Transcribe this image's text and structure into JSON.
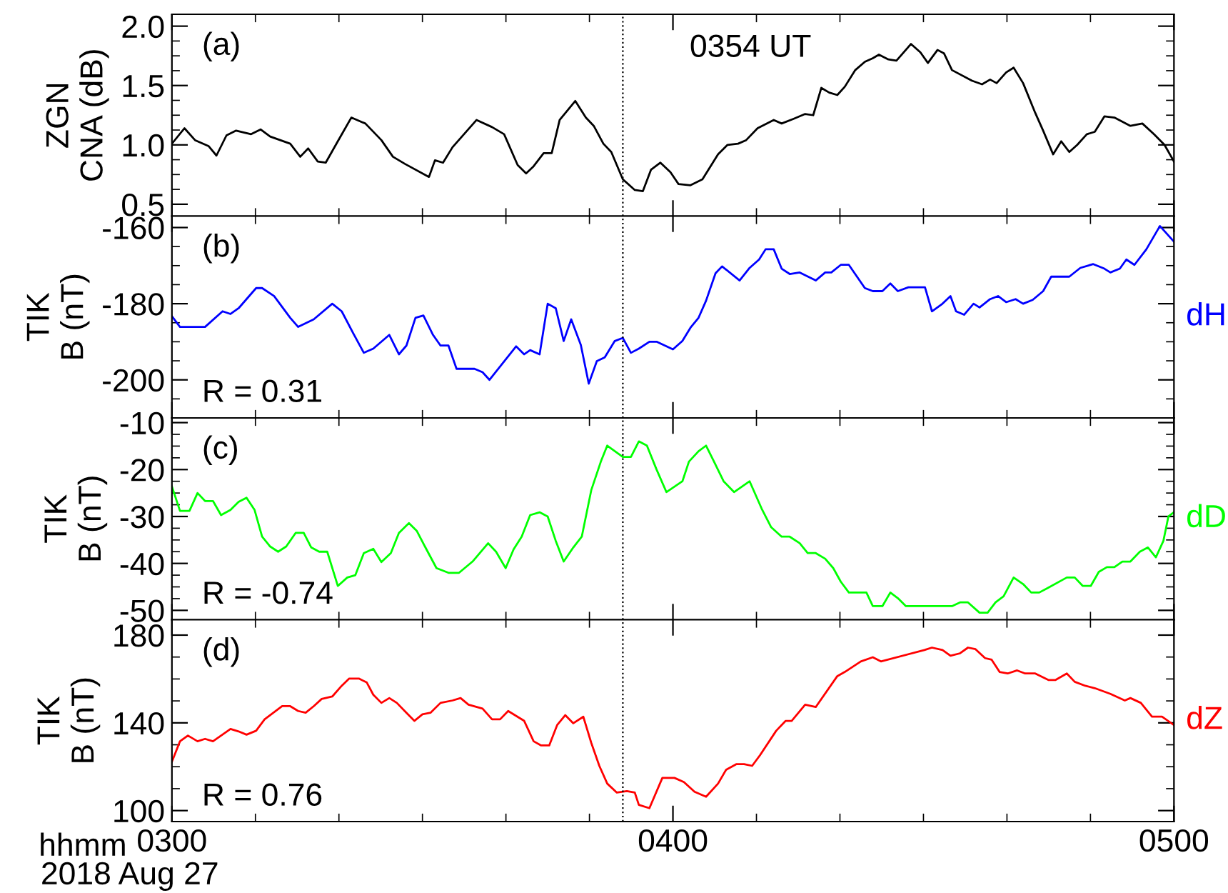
{
  "chart_data": [
    {
      "type": "line",
      "ylabel": "ZGN\nCNA (dB)",
      "annotations": [
        "(a)"
      ],
      "xlim": [
        "2018-08-27T03:00",
        "2018-08-27T05:00"
      ],
      "xticks": [
        {
          "value": "2018-08-27T03:00",
          "label": null
        },
        {
          "value": "2018-08-27T04:00",
          "label": null
        },
        {
          "value": "2018-08-27T05:00",
          "label": null
        }
      ],
      "ylim": [
        0.4,
        2.1
      ],
      "yticks": [
        0.5,
        {
          "value": 1,
          "label": "1.0"
        },
        1.5,
        {
          "value": 2,
          "label": "2.0"
        }
      ],
      "tick_labels": "y",
      "grid": false,
      "ref_lines": [
        {
          "axis": "x",
          "value": "2018-08-27T03:54",
          "label": "0354 UT",
          "line_style": "dotted",
          "color": "#000000"
        }
      ],
      "series": [
        {
          "color": "#000000",
          "x": [
            "2018-08-27T03:00:00",
            "2018-08-27T03:01:30",
            "2018-08-27T03:02:46",
            "2018-08-27T03:04:23",
            "2018-08-27T03:05:20",
            "2018-08-27T03:06:32",
            "2018-08-27T03:07:41",
            "2018-08-27T03:09:29",
            "2018-08-27T03:10:37",
            "2018-08-27T03:11:46",
            "2018-08-27T03:14:10",
            "2018-08-27T03:15:22",
            "2018-08-27T03:16:19",
            "2018-08-27T03:17:28",
            "2018-08-27T03:18:25",
            "2018-08-27T03:19:52",
            "2018-08-27T03:21:29",
            "2018-08-27T03:23:10",
            "2018-08-27T03:25:05",
            "2018-08-27T03:26:28",
            "2018-08-27T03:27:54",
            "2018-08-27T03:30:47",
            "2018-08-27T03:31:30",
            "2018-08-27T03:32:28",
            "2018-08-27T03:33:36",
            "2018-08-27T03:36:29",
            "2018-08-27T03:38:20",
            "2018-08-27T03:39:47",
            "2018-08-27T03:41:24",
            "2018-08-27T03:42:25",
            "2018-08-27T03:43:19",
            "2018-08-27T03:44:31",
            "2018-08-27T03:45:29",
            "2018-08-27T03:46:26",
            "2018-08-27T03:48:18",
            "2018-08-27T03:49:34",
            "2018-08-27T03:50:31",
            "2018-08-27T03:51:40",
            "2018-08-27T03:52:37",
            "2018-08-27T03:54:00",
            "2018-08-27T03:55:26",
            "2018-08-27T03:56:24",
            "2018-08-27T03:57:22",
            "2018-08-27T03:58:30",
            "2018-08-27T03:59:42",
            "2018-08-27T04:00:40",
            "2018-08-27T04:02:06",
            "2018-08-27T04:03:32",
            "2018-08-27T04:05:24",
            "2018-08-27T04:06:32",
            "2018-08-27T04:07:48",
            "2018-08-27T04:08:46",
            "2018-08-27T04:10:08",
            "2018-08-27T04:12:04",
            "2018-08-27T04:13:01",
            "2018-08-27T04:14:28",
            "2018-08-27T04:15:50",
            "2018-08-27T04:16:48",
            "2018-08-27T04:17:46",
            "2018-08-27T04:18:43",
            "2018-08-27T04:19:41",
            "2018-08-27T04:20:35",
            "2018-08-27T04:21:50",
            "2018-08-27T04:22:59",
            "2018-08-27T04:23:56",
            "2018-08-27T04:24:40",
            "2018-08-27T04:25:48",
            "2018-08-27T04:26:46",
            "2018-08-27T04:28:30",
            "2018-08-27T04:29:38",
            "2018-08-27T04:30:32",
            "2018-08-27T04:31:41",
            "2018-08-27T04:32:28",
            "2018-08-27T04:33:25",
            "2018-08-27T04:35:49",
            "2018-08-27T04:37:01",
            "2018-08-27T04:37:59",
            "2018-08-27T04:38:46",
            "2018-08-27T04:39:54",
            "2018-08-27T04:40:48",
            "2018-08-27T04:41:56",
            "2018-08-27T04:43:23",
            "2018-08-27T04:44:20",
            "2018-08-27T04:45:32",
            "2018-08-27T04:46:30",
            "2018-08-27T04:47:28",
            "2018-08-27T04:48:25",
            "2018-08-27T04:49:34",
            "2018-08-27T04:50:31",
            "2018-08-27T04:51:40",
            "2018-08-27T04:52:52",
            "2018-08-27T04:54:47",
            "2018-08-27T04:56:13",
            "2018-08-27T04:57:36",
            "2018-08-27T04:58:52",
            "2018-08-27T05:00:00"
          ],
          "values": [
            1.01,
            1.14,
            1.04,
            0.99,
            0.91,
            1.08,
            1.12,
            1.09,
            1.13,
            1.07,
            1.01,
            0.9,
            0.97,
            0.86,
            0.85,
            1.03,
            1.23,
            1.18,
            1.04,
            0.9,
            0.84,
            0.73,
            0.87,
            0.85,
            0.98,
            1.21,
            1.15,
            1.09,
            0.83,
            0.76,
            0.82,
            0.93,
            0.93,
            1.21,
            1.37,
            1.23,
            1.16,
            1.01,
            0.94,
            0.71,
            0.62,
            0.61,
            0.79,
            0.85,
            0.77,
            0.67,
            0.66,
            0.71,
            0.92,
            1.0,
            1.01,
            1.04,
            1.14,
            1.21,
            1.18,
            1.22,
            1.26,
            1.25,
            1.48,
            1.44,
            1.42,
            1.49,
            1.63,
            1.7,
            1.73,
            1.76,
            1.72,
            1.71,
            1.85,
            1.78,
            1.69,
            1.8,
            1.77,
            1.63,
            1.54,
            1.51,
            1.55,
            1.52,
            1.61,
            1.65,
            1.52,
            1.27,
            1.12,
            0.92,
            1.03,
            0.94,
            1.0,
            1.09,
            1.11,
            1.24,
            1.23,
            1.16,
            1.18,
            1.09,
            1.0,
            0.86
          ]
        }
      ]
    },
    {
      "type": "line",
      "ylabel": "TIK\nB (nT)",
      "annotations": [
        "(b)",
        "R = 0.31"
      ],
      "xlim": [
        "2018-08-27T03:00",
        "2018-08-27T05:00"
      ],
      "xticks": [
        {
          "value": "2018-08-27T03:00",
          "label": null
        },
        {
          "value": "2018-08-27T04:00",
          "label": null
        },
        {
          "value": "2018-08-27T05:00",
          "label": null
        }
      ],
      "ylim": [
        -210,
        -157
      ],
      "yticks": [
        -200,
        -180,
        -160
      ],
      "tick_labels": "y",
      "grid": false,
      "ref_lines": [
        {
          "axis": "x",
          "value": "2018-08-27T03:54",
          "line_style": "dotted",
          "color": "#000000"
        }
      ],
      "series": [
        {
          "name": "dH",
          "color": "#0000ff",
          "x": [
            "2018-08-27T03:00:00",
            "2018-08-27T03:00:58",
            "2018-08-27T03:03:58",
            "2018-08-27T03:06:04",
            "2018-08-27T03:07:01",
            "2018-08-27T03:07:59",
            "2018-08-27T03:10:05",
            "2018-08-27T03:10:48",
            "2018-08-27T03:12:14",
            "2018-08-27T03:14:10",
            "2018-08-27T03:15:07",
            "2018-08-27T03:16:59",
            "2018-08-27T03:19:12",
            "2018-08-27T03:20:20",
            "2018-08-27T03:21:43",
            "2018-08-27T03:22:59",
            "2018-08-27T03:24:07",
            "2018-08-27T03:26:02",
            "2018-08-27T03:27:11",
            "2018-08-27T03:28:05",
            "2018-08-27T03:29:10",
            "2018-08-27T03:30:07",
            "2018-08-27T03:31:16",
            "2018-08-27T03:32:10",
            "2018-08-27T03:33:07",
            "2018-08-27T03:34:05",
            "2018-08-27T03:36:14",
            "2018-08-27T03:37:12",
            "2018-08-27T03:38:02",
            "2018-08-27T03:41:13",
            "2018-08-27T03:42:11",
            "2018-08-27T03:42:54",
            "2018-08-27T03:44:02",
            "2018-08-27T03:45:00",
            "2018-08-27T03:45:58",
            "2018-08-27T03:46:55",
            "2018-08-27T03:47:49",
            "2018-08-27T03:48:58",
            "2018-08-27T03:49:55",
            "2018-08-27T03:50:53",
            "2018-08-27T03:51:50",
            "2018-08-27T03:53:02",
            "2018-08-27T03:54:00",
            "2018-08-27T03:54:58",
            "2018-08-27T03:55:55",
            "2018-08-27T03:57:11",
            "2018-08-27T03:58:05",
            "2018-08-27T04:00:00",
            "2018-08-27T04:01:08",
            "2018-08-27T04:02:06",
            "2018-08-27T04:03:04",
            "2018-08-27T04:03:58",
            "2018-08-27T04:05:06",
            "2018-08-27T04:05:53",
            "2018-08-27T04:07:59",
            "2018-08-27T04:09:11",
            "2018-08-27T04:10:19",
            "2018-08-27T04:11:06",
            "2018-08-27T04:12:04",
            "2018-08-27T04:13:01",
            "2018-08-27T04:13:59",
            "2018-08-27T04:15:11",
            "2018-08-27T04:17:06",
            "2018-08-27T04:18:14",
            "2018-08-27T04:18:58",
            "2018-08-27T04:20:06",
            "2018-08-27T04:21:04",
            "2018-08-27T04:22:59",
            "2018-08-27T04:23:56",
            "2018-08-27T04:25:05",
            "2018-08-27T04:26:02",
            "2018-08-27T04:26:56",
            "2018-08-27T04:28:12",
            "2018-08-27T04:30:11",
            "2018-08-27T04:31:01",
            "2018-08-27T04:32:17",
            "2018-08-27T04:33:14",
            "2018-08-27T04:33:54",
            "2018-08-27T04:34:52",
            "2018-08-27T04:36:00",
            "2018-08-27T04:36:43",
            "2018-08-27T04:37:59",
            "2018-08-27T04:38:56",
            "2018-08-27T04:39:54",
            "2018-08-27T04:41:02",
            "2018-08-27T04:41:56",
            "2018-08-27T04:43:05",
            "2018-08-27T04:44:20",
            "2018-08-27T04:45:18",
            "2018-08-27T04:47:28",
            "2018-08-27T04:48:47",
            "2018-08-27T04:50:20",
            "2018-08-27T04:51:40",
            "2018-08-27T04:52:23",
            "2018-08-27T04:53:31",
            "2018-08-27T04:54:18",
            "2018-08-27T04:55:16",
            "2018-08-27T04:56:42",
            "2018-08-27T04:58:19",
            "2018-08-27T05:00:00"
          ],
          "values": [
            -183.3,
            -186.1,
            -186.1,
            -182.0,
            -182.7,
            -181.2,
            -175.9,
            -175.9,
            -178,
            -183.7,
            -186.1,
            -184.1,
            -180,
            -182,
            -187.8,
            -192.9,
            -191.8,
            -188.2,
            -193.3,
            -191,
            -183.7,
            -183.1,
            -188.2,
            -191,
            -191,
            -197.1,
            -197.1,
            -198,
            -200,
            -191.2,
            -193.3,
            -192.2,
            -193.3,
            -180,
            -181.2,
            -189.8,
            -184.1,
            -190.8,
            -201,
            -195.1,
            -194.1,
            -189.8,
            -189,
            -192.9,
            -191.8,
            -190,
            -190,
            -192,
            -189.8,
            -186.3,
            -183.7,
            -179.2,
            -172,
            -170.2,
            -173.9,
            -170.6,
            -168.4,
            -165.7,
            -165.7,
            -170.8,
            -172.2,
            -171.8,
            -173.9,
            -171.8,
            -171.8,
            -169.8,
            -169.8,
            -175.9,
            -176.7,
            -176.7,
            -174.7,
            -176.7,
            -175.7,
            -175.7,
            -182,
            -180,
            -178,
            -182,
            -182.9,
            -180,
            -181,
            -178.8,
            -178,
            -179.6,
            -178.8,
            -180,
            -179,
            -176.7,
            -172.9,
            -172.9,
            -170.6,
            -169.6,
            -170.8,
            -171.8,
            -170.8,
            -168.4,
            -169.8,
            -165.7,
            -159.6,
            -163.7
          ]
        }
      ]
    },
    {
      "type": "line",
      "ylabel": "TIK\nB (nT)",
      "annotations": [
        "(c)",
        "R = -0.74"
      ],
      "xlim": [
        "2018-08-27T03:00",
        "2018-08-27T05:00"
      ],
      "xticks": [
        {
          "value": "2018-08-27T03:00",
          "label": null
        },
        {
          "value": "2018-08-27T04:00",
          "label": null
        },
        {
          "value": "2018-08-27T05:00",
          "label": null
        }
      ],
      "ylim": [
        -52,
        -9
      ],
      "yticks": [
        -50,
        -40,
        -30,
        -20,
        -10
      ],
      "tick_labels": "y",
      "grid": false,
      "ref_lines": [
        {
          "axis": "x",
          "value": "2018-08-27T03:54",
          "line_style": "dotted",
          "color": "#000000"
        }
      ],
      "series": [
        {
          "name": "dD",
          "color": "#00ff00",
          "x": [
            "2018-08-27T03:00:00",
            "2018-08-27T03:00:58",
            "2018-08-27T03:02:06",
            "2018-08-27T03:03:04",
            "2018-08-27T03:03:58",
            "2018-08-27T03:04:55",
            "2018-08-27T03:05:53",
            "2018-08-27T03:07:01",
            "2018-08-27T03:07:59",
            "2018-08-27T03:08:56",
            "2018-08-27T03:09:54",
            "2018-08-27T03:10:48",
            "2018-08-27T03:11:46",
            "2018-08-27T03:12:43",
            "2018-08-27T03:13:41",
            "2018-08-27T03:14:49",
            "2018-08-27T03:15:47",
            "2018-08-27T03:16:41",
            "2018-08-27T03:17:38",
            "2018-08-27T03:18:36",
            "2018-08-27T03:19:52",
            "2018-08-27T03:21:00",
            "2018-08-27T03:21:58",
            "2018-08-27T03:22:59",
            "2018-08-27T03:24:07",
            "2018-08-27T03:25:05",
            "2018-08-27T03:26:13",
            "2018-08-27T03:27:11",
            "2018-08-27T03:28:23",
            "2018-08-27T03:29:20",
            "2018-08-27T03:30:18",
            "2018-08-27T03:31:41",
            "2018-08-27T03:33:07",
            "2018-08-27T03:34:23",
            "2018-08-27T03:36:00",
            "2018-08-27T03:37:52",
            "2018-08-27T03:38:49",
            "2018-08-27T03:39:58",
            "2018-08-27T03:40:55",
            "2018-08-27T03:41:53",
            "2018-08-27T03:42:54",
            "2018-08-27T03:44:02",
            "2018-08-27T03:45:00",
            "2018-08-27T03:45:58",
            "2018-08-27T03:46:55",
            "2018-08-27T03:48:04",
            "2018-08-27T03:49:05",
            "2018-08-27T03:50:13",
            "2018-08-27T03:51:22",
            "2018-08-27T03:52:08",
            "2018-08-27T03:54:00",
            "2018-08-27T03:54:58",
            "2018-08-27T03:55:55",
            "2018-08-27T03:56:53",
            "2018-08-27T03:58:01",
            "2018-08-27T03:59:13",
            "2018-08-27T04:01:08",
            "2018-08-27T04:01:55",
            "2018-08-27T04:03:04",
            "2018-08-27T04:03:58",
            "2018-08-27T04:04:55",
            "2018-08-27T04:06:04",
            "2018-08-27T04:07:19",
            "2018-08-27T04:09:11",
            "2018-08-27T04:10:37",
            "2018-08-27T04:11:46",
            "2018-08-27T04:13:01",
            "2018-08-27T04:13:59",
            "2018-08-27T04:15:11",
            "2018-08-27T04:16:08",
            "2018-08-27T04:17:06",
            "2018-08-27T04:18:14",
            "2018-08-27T04:19:12",
            "2018-08-27T04:20:06",
            "2018-08-27T04:21:04",
            "2018-08-27T04:22:12",
            "2018-08-27T04:23:10",
            "2018-08-27T04:23:56",
            "2018-08-27T04:25:05",
            "2018-08-27T04:26:02",
            "2018-08-27T04:26:56",
            "2018-08-27T04:27:54",
            "2018-08-27T04:33:25",
            "2018-08-27T04:34:23",
            "2018-08-27T04:35:20",
            "2018-08-27T04:36:43",
            "2018-08-27T04:37:41",
            "2018-08-27T04:38:38",
            "2018-08-27T04:39:36",
            "2018-08-27T04:40:48",
            "2018-08-27T04:41:56",
            "2018-08-27T04:42:54",
            "2018-08-27T04:43:52",
            "2018-08-27T04:44:49",
            "2018-08-27T04:47:10",
            "2018-08-27T04:48:07",
            "2018-08-27T04:49:05",
            "2018-08-27T04:50:02",
            "2018-08-27T04:51:00",
            "2018-08-27T04:51:58",
            "2018-08-27T04:52:52",
            "2018-08-27T04:53:49",
            "2018-08-27T04:54:47",
            "2018-08-27T04:55:55",
            "2018-08-27T04:56:53",
            "2018-08-27T04:57:50",
            "2018-08-27T04:58:44",
            "2018-08-27T04:59:20",
            "2018-08-27T05:00:00"
          ],
          "values": [
            -23.6,
            -28.8,
            -28.8,
            -25,
            -26.7,
            -26.7,
            -29.7,
            -28.6,
            -26.9,
            -26,
            -28.6,
            -34.3,
            -36.4,
            -37.5,
            -36.4,
            -33.5,
            -33.5,
            -36.6,
            -37.5,
            -37.5,
            -44.8,
            -43,
            -42.5,
            -37.8,
            -36.9,
            -39.7,
            -37.8,
            -33.5,
            -31.4,
            -33.1,
            -36.4,
            -41,
            -42,
            -42,
            -39.6,
            -35.7,
            -37.5,
            -41,
            -37,
            -34.3,
            -29.7,
            -29.1,
            -30,
            -35.2,
            -39.6,
            -36.6,
            -34.3,
            -24.4,
            -18.3,
            -14.9,
            -17.3,
            -17.3,
            -14,
            -14.9,
            -19.9,
            -24.8,
            -22.5,
            -18.3,
            -16.1,
            -14.9,
            -18.3,
            -22.5,
            -24.8,
            -22.5,
            -28.3,
            -32.3,
            -34.3,
            -34.3,
            -35.7,
            -37.8,
            -37.8,
            -39,
            -41,
            -43.9,
            -46.2,
            -46.2,
            -46.2,
            -49.1,
            -49.1,
            -46.2,
            -47.4,
            -49.1,
            -49.1,
            -48.3,
            -48.3,
            -50.5,
            -50.5,
            -48.3,
            -47,
            -43,
            -44.4,
            -46.2,
            -46.2,
            -45.3,
            -43,
            -43,
            -44.8,
            -44.8,
            -41.8,
            -40.8,
            -40.8,
            -39.6,
            -39.6,
            -37.5,
            -36.6,
            -38.7,
            -35.2,
            -30,
            -29.1
          ]
        }
      ]
    },
    {
      "type": "line",
      "ylabel": "TIK\nB (nT)",
      "annotations": [
        "(d)",
        "R = 0.76",
        "hhmm",
        "2018 Aug 27"
      ],
      "xlim": [
        "2018-08-27T03:00",
        "2018-08-27T05:00"
      ],
      "xticks": [
        {
          "value": "2018-08-27T03:00",
          "label": "0300"
        },
        {
          "value": "2018-08-27T04:00",
          "label": "0400"
        },
        {
          "value": "2018-08-27T05:00",
          "label": "0500"
        }
      ],
      "ylim": [
        95,
        187
      ],
      "yticks": [
        100,
        140,
        180
      ],
      "grid": false,
      "ref_lines": [
        {
          "axis": "x",
          "value": "2018-08-27T03:54",
          "line_style": "dotted",
          "color": "#000000"
        }
      ],
      "series": [
        {
          "name": "dZ",
          "color": "#ff0000",
          "x": [
            "2018-08-27T03:00:00",
            "2018-08-27T03:00:58",
            "2018-08-27T03:01:55",
            "2018-08-27T03:03:04",
            "2018-08-27T03:03:58",
            "2018-08-27T03:04:55",
            "2018-08-27T03:07:01",
            "2018-08-27T03:07:59",
            "2018-08-27T03:08:56",
            "2018-08-27T03:10:05",
            "2018-08-27T03:11:06",
            "2018-08-27T03:13:12",
            "2018-08-27T03:14:10",
            "2018-08-27T03:15:07",
            "2018-08-27T03:16:01",
            "2018-08-27T03:16:59",
            "2018-08-27T03:17:56",
            "2018-08-27T03:19:12",
            "2018-08-27T03:20:20",
            "2018-08-27T03:21:14",
            "2018-08-27T03:22:23",
            "2018-08-27T03:23:20",
            "2018-08-27T03:24:07",
            "2018-08-27T03:25:05",
            "2018-08-27T03:26:02",
            "2018-08-27T03:26:56",
            "2018-08-27T03:28:05",
            "2018-08-27T03:29:02",
            "2018-08-27T03:30:00",
            "2018-08-27T03:30:58",
            "2018-08-27T03:32:10",
            "2018-08-27T03:33:36",
            "2018-08-27T03:34:34",
            "2018-08-27T03:35:31",
            "2018-08-27T03:37:12",
            "2018-08-27T03:38:20",
            "2018-08-27T03:39:18",
            "2018-08-27T03:40:16",
            "2018-08-27T03:42:11",
            "2018-08-27T03:43:19",
            "2018-08-27T03:44:13",
            "2018-08-27T03:45:11",
            "2018-08-27T03:46:08",
            "2018-08-27T03:47:06",
            "2018-08-27T03:48:04",
            "2018-08-27T03:49:16",
            "2018-08-27T03:50:13",
            "2018-08-27T03:51:11",
            "2018-08-27T03:52:08",
            "2018-08-27T03:53:17",
            "2018-08-27T03:54:29",
            "2018-08-27T03:55:26",
            "2018-08-27T03:55:55",
            "2018-08-27T03:57:11",
            "2018-08-27T03:58:44",
            "2018-08-27T04:00:11",
            "2018-08-27T04:01:19",
            "2018-08-27T04:02:35",
            "2018-08-27T04:03:58",
            "2018-08-27T04:05:24",
            "2018-08-27T04:06:22",
            "2018-08-27T04:07:37",
            "2018-08-27T04:08:31",
            "2018-08-27T04:09:29",
            "2018-08-27T04:10:26",
            "2018-08-27T04:12:22",
            "2018-08-27T04:13:30",
            "2018-08-27T04:14:13",
            "2018-08-27T04:15:50",
            "2018-08-27T04:17:06",
            "2018-08-27T04:19:41",
            "2018-08-27T04:20:35",
            "2018-08-27T04:22:30",
            "2018-08-27T04:23:56",
            "2018-08-27T04:24:54",
            "2018-08-27T04:30:07",
            "2018-08-27T04:31:01",
            "2018-08-27T04:32:17",
            "2018-08-27T04:33:14",
            "2018-08-27T04:34:23",
            "2018-08-27T04:35:20",
            "2018-08-27T04:36:14",
            "2018-08-27T04:37:23",
            "2018-08-27T04:38:10",
            "2018-08-27T04:39:07",
            "2018-08-27T04:40:05",
            "2018-08-27T04:41:13",
            "2018-08-27T04:42:11",
            "2018-08-27T04:43:23",
            "2018-08-27T04:45:00",
            "2018-08-27T04:45:47",
            "2018-08-27T04:47:10",
            "2018-08-27T04:48:07",
            "2018-08-27T04:49:23",
            "2018-08-27T04:50:31",
            "2018-08-27T04:52:23",
            "2018-08-27T04:54:07",
            "2018-08-27T04:54:47",
            "2018-08-27T04:56:02",
            "2018-08-27T04:57:22",
            "2018-08-27T04:58:34",
            "2018-08-27T05:00:00"
          ],
          "values": [
            122.3,
            131.6,
            134.2,
            131.6,
            132.7,
            131.6,
            137.2,
            136.1,
            134.6,
            136.4,
            141.6,
            147.6,
            147.6,
            145.4,
            144.6,
            147.6,
            150.9,
            152,
            156.9,
            160.2,
            160.2,
            158.4,
            152.8,
            149.1,
            151.3,
            149.1,
            144.6,
            140.9,
            143.9,
            144.6,
            149.1,
            150.2,
            151.3,
            148.3,
            146.5,
            141.6,
            141.6,
            145.4,
            140.9,
            131.6,
            129.7,
            129.7,
            139,
            143.5,
            139.8,
            142.8,
            130.9,
            120.4,
            112.3,
            108.2,
            108.9,
            108.2,
            102.6,
            101.1,
            114.9,
            114.9,
            113,
            108.6,
            106.3,
            112.3,
            118.6,
            121.2,
            121.2,
            120.4,
            125.3,
            136.4,
            140.9,
            140.9,
            148.3,
            147.2,
            161.3,
            163.2,
            168,
            169.9,
            168,
            173.2,
            174.3,
            173.2,
            170.6,
            171.7,
            174.3,
            173.6,
            169.5,
            168.8,
            163.2,
            162.5,
            163.9,
            162.5,
            162.5,
            159.5,
            159.5,
            162.5,
            158.7,
            156.9,
            155.8,
            153.2,
            150.2,
            151.3,
            149.1,
            142.8,
            142.8,
            139
          ]
        }
      ]
    }
  ]
}
